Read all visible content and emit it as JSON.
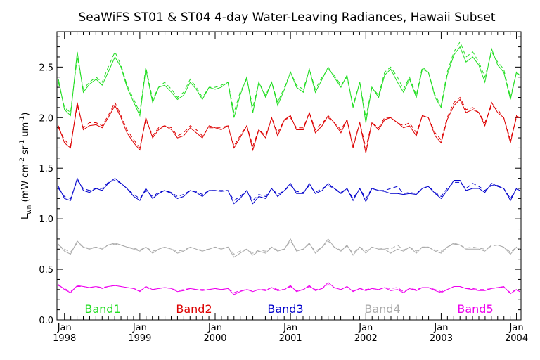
{
  "chart_data": {
    "type": "line",
    "title": "SeaWiFS ST01 & ST04 4-day Water-Leaving Radiances, Hawaii Subset",
    "ylabel": "L_wn (mW cm^-2 sr^-1 um^-1)",
    "ylabel_parts": {
      "main": "L",
      "sub": "wn",
      "rest": " (mW cm",
      "exp1": "-2",
      "mid": " sr",
      "exp2": "-1",
      "mid2": " um",
      "exp3": "-1",
      "end": ")"
    },
    "xlabel": "",
    "ylim": [
      0.0,
      2.85
    ],
    "xlim": [
      1997.9,
      2004.06
    ],
    "yticks": [
      "0.0",
      "0.5",
      "1.0",
      "1.5",
      "2.0",
      "2.5"
    ],
    "ytick_values": [
      0.0,
      0.5,
      1.0,
      1.5,
      2.0,
      2.5
    ],
    "xticks": [
      {
        "value": 1998.0,
        "month": "Jan",
        "year": "1998"
      },
      {
        "value": 1999.0,
        "month": "Jan",
        "year": "1999"
      },
      {
        "value": 2000.0,
        "month": "Jan",
        "year": "2000"
      },
      {
        "value": 2001.0,
        "month": "Jan",
        "year": "2001"
      },
      {
        "value": 2002.0,
        "month": "Jan",
        "year": "2002"
      },
      {
        "value": 2003.0,
        "month": "Jan",
        "year": "2003"
      },
      {
        "value": 2004.0,
        "month": "Jan",
        "year": "2004"
      }
    ],
    "legend": [
      {
        "name": "Band1",
        "color": "#22dd22"
      },
      {
        "name": "Band2",
        "color": "#dd0000"
      },
      {
        "name": "Band3",
        "color": "#0000cc"
      },
      {
        "name": "Band4",
        "color": "#aaaaaa"
      },
      {
        "name": "Band5",
        "color": "#ee00ee"
      }
    ],
    "x": [
      1997.92,
      1998.0,
      1998.08,
      1998.17,
      1998.25,
      1998.33,
      1998.42,
      1998.5,
      1998.58,
      1998.67,
      1998.75,
      1998.83,
      1998.92,
      1999.0,
      1999.08,
      1999.17,
      1999.25,
      1999.33,
      1999.42,
      1999.5,
      1999.58,
      1999.67,
      1999.75,
      1999.83,
      1999.92,
      2000.0,
      2000.08,
      2000.17,
      2000.25,
      2000.33,
      2000.42,
      2000.5,
      2000.58,
      2000.67,
      2000.75,
      2000.83,
      2000.92,
      2001.0,
      2001.08,
      2001.17,
      2001.25,
      2001.33,
      2001.42,
      2001.5,
      2001.58,
      2001.67,
      2001.75,
      2001.83,
      2001.92,
      2002.0,
      2002.08,
      2002.17,
      2002.25,
      2002.33,
      2002.42,
      2002.5,
      2002.58,
      2002.67,
      2002.75,
      2002.83,
      2002.92,
      2003.0,
      2003.08,
      2003.17,
      2003.25,
      2003.33,
      2003.42,
      2003.5,
      2003.58,
      2003.67,
      2003.75,
      2003.83,
      2003.92,
      2004.0,
      2004.04
    ],
    "series": [
      {
        "name": "Band1",
        "style": "solid",
        "color": "#22dd22",
        "values": [
          2.38,
          2.08,
          2.02,
          2.65,
          2.25,
          2.33,
          2.38,
          2.32,
          2.45,
          2.6,
          2.5,
          2.3,
          2.15,
          2.02,
          2.48,
          2.15,
          2.3,
          2.32,
          2.25,
          2.18,
          2.22,
          2.35,
          2.28,
          2.18,
          2.3,
          2.28,
          2.3,
          2.35,
          2.0,
          2.22,
          2.4,
          2.05,
          2.35,
          2.2,
          2.35,
          2.12,
          2.28,
          2.45,
          2.3,
          2.25,
          2.48,
          2.25,
          2.38,
          2.5,
          2.4,
          2.3,
          2.42,
          2.1,
          2.35,
          1.95,
          2.3,
          2.2,
          2.42,
          2.48,
          2.35,
          2.25,
          2.38,
          2.2,
          2.48,
          2.45,
          2.2,
          2.1,
          2.42,
          2.62,
          2.7,
          2.55,
          2.6,
          2.52,
          2.35,
          2.68,
          2.52,
          2.45,
          2.18,
          2.45,
          2.42
        ]
      },
      {
        "name": "Band1",
        "style": "dashed",
        "color": "#22dd22",
        "values": [
          2.35,
          2.1,
          2.05,
          2.6,
          2.28,
          2.35,
          2.4,
          2.35,
          2.5,
          2.65,
          2.52,
          2.32,
          2.18,
          2.05,
          2.5,
          2.18,
          2.3,
          2.35,
          2.28,
          2.2,
          2.25,
          2.38,
          2.3,
          2.2,
          2.3,
          2.3,
          2.32,
          2.35,
          2.05,
          2.25,
          2.38,
          2.1,
          2.35,
          2.22,
          2.35,
          2.15,
          2.3,
          2.45,
          2.32,
          2.28,
          2.48,
          2.28,
          2.4,
          2.48,
          2.42,
          2.32,
          2.4,
          2.12,
          2.35,
          2.0,
          2.3,
          2.22,
          2.45,
          2.5,
          2.4,
          2.28,
          2.4,
          2.22,
          2.5,
          2.45,
          2.22,
          2.12,
          2.45,
          2.65,
          2.75,
          2.6,
          2.65,
          2.55,
          2.4,
          2.65,
          2.55,
          2.48,
          2.2,
          2.45,
          2.42
        ]
      },
      {
        "name": "Band2",
        "style": "solid",
        "color": "#dd0000",
        "values": [
          1.92,
          1.75,
          1.7,
          2.15,
          1.88,
          1.92,
          1.93,
          1.9,
          2.0,
          2.12,
          2.0,
          1.85,
          1.75,
          1.68,
          2.0,
          1.8,
          1.88,
          1.92,
          1.88,
          1.8,
          1.82,
          1.9,
          1.85,
          1.8,
          1.92,
          1.9,
          1.88,
          1.92,
          1.7,
          1.8,
          1.92,
          1.68,
          1.88,
          1.8,
          2.0,
          1.82,
          1.98,
          2.02,
          1.88,
          1.88,
          2.05,
          1.85,
          1.92,
          2.02,
          1.95,
          1.85,
          1.98,
          1.7,
          1.95,
          1.65,
          1.95,
          1.88,
          1.98,
          2.0,
          1.95,
          1.9,
          1.92,
          1.82,
          2.02,
          2.0,
          1.82,
          1.75,
          1.98,
          2.12,
          2.18,
          2.05,
          2.08,
          2.05,
          1.92,
          2.15,
          2.05,
          2.0,
          1.75,
          2.02,
          2.0
        ]
      },
      {
        "name": "Band2",
        "style": "dashed",
        "color": "#dd0000",
        "values": [
          1.9,
          1.78,
          1.72,
          2.12,
          1.9,
          1.95,
          1.95,
          1.92,
          2.02,
          2.15,
          2.02,
          1.88,
          1.78,
          1.7,
          1.98,
          1.82,
          1.9,
          1.92,
          1.9,
          1.82,
          1.85,
          1.92,
          1.88,
          1.82,
          1.9,
          1.9,
          1.9,
          1.92,
          1.72,
          1.82,
          1.92,
          1.72,
          1.88,
          1.82,
          2.0,
          1.85,
          1.98,
          2.0,
          1.9,
          1.9,
          2.05,
          1.88,
          1.95,
          2.0,
          1.95,
          1.88,
          1.98,
          1.72,
          1.95,
          1.7,
          1.95,
          1.9,
          2.0,
          2.0,
          1.95,
          1.92,
          1.95,
          1.85,
          2.02,
          2.0,
          1.85,
          1.78,
          2.0,
          2.15,
          2.2,
          2.08,
          2.1,
          2.05,
          1.95,
          2.12,
          2.08,
          2.0,
          1.78,
          2.0,
          2.0
        ]
      },
      {
        "name": "Band3",
        "style": "solid",
        "color": "#0000cc",
        "values": [
          1.32,
          1.2,
          1.18,
          1.4,
          1.28,
          1.26,
          1.3,
          1.28,
          1.35,
          1.4,
          1.35,
          1.3,
          1.22,
          1.18,
          1.3,
          1.2,
          1.25,
          1.28,
          1.25,
          1.2,
          1.22,
          1.28,
          1.26,
          1.22,
          1.28,
          1.28,
          1.27,
          1.28,
          1.15,
          1.2,
          1.28,
          1.15,
          1.22,
          1.2,
          1.3,
          1.22,
          1.28,
          1.35,
          1.25,
          1.25,
          1.35,
          1.25,
          1.28,
          1.35,
          1.3,
          1.25,
          1.3,
          1.18,
          1.3,
          1.17,
          1.3,
          1.28,
          1.27,
          1.25,
          1.25,
          1.24,
          1.25,
          1.24,
          1.3,
          1.32,
          1.25,
          1.2,
          1.28,
          1.38,
          1.38,
          1.28,
          1.3,
          1.3,
          1.26,
          1.35,
          1.32,
          1.3,
          1.18,
          1.3,
          1.28
        ]
      },
      {
        "name": "Band3",
        "style": "dashed",
        "color": "#0000cc",
        "values": [
          1.3,
          1.22,
          1.2,
          1.38,
          1.3,
          1.28,
          1.3,
          1.3,
          1.36,
          1.38,
          1.35,
          1.3,
          1.24,
          1.2,
          1.28,
          1.22,
          1.26,
          1.28,
          1.26,
          1.22,
          1.24,
          1.28,
          1.27,
          1.24,
          1.28,
          1.28,
          1.28,
          1.28,
          1.18,
          1.22,
          1.28,
          1.18,
          1.24,
          1.22,
          1.3,
          1.24,
          1.28,
          1.33,
          1.27,
          1.26,
          1.33,
          1.26,
          1.3,
          1.33,
          1.3,
          1.26,
          1.3,
          1.2,
          1.3,
          1.2,
          1.3,
          1.28,
          1.28,
          1.3,
          1.32,
          1.25,
          1.26,
          1.25,
          1.3,
          1.32,
          1.26,
          1.22,
          1.3,
          1.36,
          1.36,
          1.3,
          1.35,
          1.32,
          1.28,
          1.33,
          1.33,
          1.3,
          1.2,
          1.3,
          1.28
        ]
      },
      {
        "name": "Band4",
        "style": "solid",
        "color": "#aaaaaa",
        "values": [
          0.75,
          0.68,
          0.65,
          0.78,
          0.72,
          0.7,
          0.72,
          0.7,
          0.74,
          0.76,
          0.74,
          0.72,
          0.7,
          0.68,
          0.72,
          0.66,
          0.7,
          0.72,
          0.7,
          0.66,
          0.68,
          0.72,
          0.7,
          0.68,
          0.7,
          0.72,
          0.7,
          0.72,
          0.62,
          0.66,
          0.7,
          0.64,
          0.68,
          0.66,
          0.72,
          0.68,
          0.7,
          0.8,
          0.68,
          0.7,
          0.76,
          0.66,
          0.72,
          0.8,
          0.72,
          0.68,
          0.74,
          0.64,
          0.72,
          0.66,
          0.72,
          0.7,
          0.7,
          0.66,
          0.7,
          0.68,
          0.72,
          0.66,
          0.72,
          0.72,
          0.68,
          0.66,
          0.72,
          0.76,
          0.74,
          0.7,
          0.7,
          0.7,
          0.68,
          0.74,
          0.74,
          0.72,
          0.65,
          0.72,
          0.7
        ]
      },
      {
        "name": "Band4",
        "style": "dashed",
        "color": "#aaaaaa",
        "values": [
          0.74,
          0.7,
          0.67,
          0.76,
          0.72,
          0.71,
          0.72,
          0.71,
          0.74,
          0.75,
          0.74,
          0.72,
          0.71,
          0.69,
          0.72,
          0.68,
          0.7,
          0.72,
          0.7,
          0.68,
          0.69,
          0.72,
          0.7,
          0.69,
          0.7,
          0.72,
          0.71,
          0.72,
          0.65,
          0.68,
          0.7,
          0.66,
          0.69,
          0.68,
          0.72,
          0.69,
          0.7,
          0.78,
          0.69,
          0.7,
          0.75,
          0.68,
          0.72,
          0.78,
          0.72,
          0.69,
          0.73,
          0.66,
          0.72,
          0.68,
          0.72,
          0.7,
          0.71,
          0.7,
          0.74,
          0.69,
          0.72,
          0.68,
          0.72,
          0.72,
          0.69,
          0.68,
          0.72,
          0.75,
          0.74,
          0.71,
          0.72,
          0.71,
          0.7,
          0.73,
          0.74,
          0.72,
          0.67,
          0.72,
          0.7
        ]
      },
      {
        "name": "Band5",
        "style": "solid",
        "color": "#ee00ee",
        "values": [
          0.35,
          0.3,
          0.27,
          0.34,
          0.33,
          0.32,
          0.33,
          0.31,
          0.33,
          0.34,
          0.33,
          0.32,
          0.31,
          0.28,
          0.33,
          0.3,
          0.31,
          0.32,
          0.31,
          0.28,
          0.29,
          0.31,
          0.3,
          0.29,
          0.3,
          0.31,
          0.3,
          0.31,
          0.25,
          0.28,
          0.3,
          0.28,
          0.3,
          0.29,
          0.32,
          0.29,
          0.3,
          0.34,
          0.28,
          0.3,
          0.34,
          0.29,
          0.31,
          0.37,
          0.32,
          0.3,
          0.33,
          0.28,
          0.31,
          0.29,
          0.31,
          0.3,
          0.32,
          0.29,
          0.3,
          0.27,
          0.31,
          0.29,
          0.32,
          0.32,
          0.29,
          0.27,
          0.3,
          0.33,
          0.33,
          0.31,
          0.3,
          0.29,
          0.29,
          0.31,
          0.32,
          0.33,
          0.26,
          0.3,
          0.28
        ]
      },
      {
        "name": "Band5",
        "style": "dashed",
        "color": "#ee00ee",
        "values": [
          0.34,
          0.31,
          0.28,
          0.33,
          0.33,
          0.32,
          0.33,
          0.32,
          0.33,
          0.34,
          0.33,
          0.32,
          0.31,
          0.29,
          0.32,
          0.3,
          0.31,
          0.32,
          0.31,
          0.29,
          0.3,
          0.31,
          0.3,
          0.3,
          0.3,
          0.31,
          0.3,
          0.31,
          0.27,
          0.29,
          0.3,
          0.29,
          0.3,
          0.3,
          0.32,
          0.3,
          0.3,
          0.33,
          0.29,
          0.3,
          0.33,
          0.3,
          0.31,
          0.35,
          0.32,
          0.3,
          0.33,
          0.29,
          0.31,
          0.3,
          0.31,
          0.3,
          0.32,
          0.31,
          0.32,
          0.28,
          0.31,
          0.3,
          0.32,
          0.32,
          0.3,
          0.28,
          0.3,
          0.33,
          0.33,
          0.31,
          0.31,
          0.3,
          0.3,
          0.31,
          0.32,
          0.32,
          0.27,
          0.3,
          0.28
        ]
      }
    ]
  }
}
